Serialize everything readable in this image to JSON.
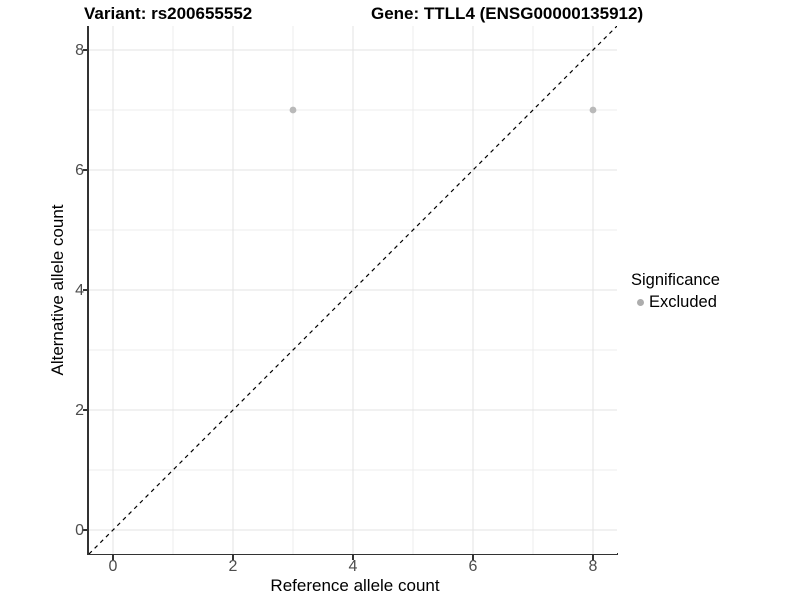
{
  "chart_data": {
    "type": "scatter",
    "title_left": "Variant: rs200655552",
    "title_right": "Gene: TTLL4 (ENSG00000135912)",
    "xlabel": "Reference allele count",
    "ylabel": "Alternative allele count",
    "xlim": [
      -0.4,
      8.4
    ],
    "ylim": [
      -0.4,
      8.4
    ],
    "x_ticks": {
      "values": [
        0,
        2,
        4,
        6,
        8
      ],
      "labels": [
        "0",
        "2",
        "4",
        "6",
        "8"
      ]
    },
    "y_ticks": {
      "values": [
        0,
        2,
        4,
        6,
        8
      ],
      "labels": [
        "0",
        "2",
        "4",
        "6",
        "8"
      ]
    },
    "x_minor_gridlines": [
      1,
      3,
      5,
      7
    ],
    "y_minor_gridlines": [
      1,
      3,
      5,
      7
    ],
    "grid": true,
    "legend_position": "right",
    "series": [
      {
        "name": "Excluded",
        "color": "#b9b9b9",
        "marker": "dot",
        "points": [
          {
            "x": 3,
            "y": 7
          },
          {
            "x": 8,
            "y": 7
          }
        ]
      }
    ],
    "reference_line": {
      "type": "identity",
      "style": "dashed",
      "color": "#000000",
      "from": [
        -0.4,
        -0.4
      ],
      "to": [
        8.4,
        8.4
      ]
    }
  },
  "legend": {
    "title": "Significance",
    "items": [
      {
        "label": "Excluded",
        "marker": "dot",
        "marker_color": "#adadad"
      }
    ]
  },
  "colors": {
    "background": "#ffffff",
    "grid_major": "#e3e3e3",
    "grid_minor": "#ececec",
    "axis_line": "#333333",
    "tick_label": "#4d4d4d",
    "title_text": "#000000",
    "point": "#b9b9b9",
    "identity_line": "#000000"
  }
}
